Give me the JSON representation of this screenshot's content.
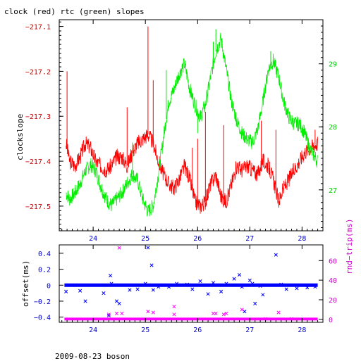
{
  "figure": {
    "title": "clock (red) rtc (green) slopes",
    "footer": "2009-08-23 boson"
  },
  "chart_data": [
    {
      "type": "line",
      "title": "clock (red) rtc (green) slopes",
      "xlabel": "",
      "ylabel": "clockslope",
      "xlim": [
        23.35,
        28.4
      ],
      "ylim": [
        -217.555,
        -217.085
      ],
      "y2lim": [
        26.35,
        29.7
      ],
      "xticks": [
        24,
        25,
        26,
        27,
        28
      ],
      "yticks": [
        -217.1,
        -217.2,
        -217.3,
        -217.4,
        -217.5
      ],
      "yticks_labels": [
        "−217.1",
        "−217.2",
        "−217.3",
        "−217.4",
        "−217.5"
      ],
      "y2ticks": [
        27,
        28,
        29
      ],
      "grid": false,
      "series": [
        {
          "color": "#ff0000",
          "axis": "left",
          "points": [
            [
              23.48,
              -217.36
            ],
            [
              23.55,
              -217.4
            ],
            [
              23.65,
              -217.41
            ],
            [
              23.75,
              -217.39
            ],
            [
              23.85,
              -217.36
            ],
            [
              23.95,
              -217.37
            ],
            [
              24.05,
              -217.4
            ],
            [
              24.15,
              -217.41
            ],
            [
              24.25,
              -217.42
            ],
            [
              24.35,
              -217.41
            ],
            [
              24.45,
              -217.39
            ],
            [
              24.55,
              -217.39
            ],
            [
              24.65,
              -217.41
            ],
            [
              24.75,
              -217.38
            ],
            [
              24.85,
              -217.36
            ],
            [
              24.95,
              -217.35
            ],
            [
              25.05,
              -217.34
            ],
            [
              25.15,
              -217.36
            ],
            [
              25.25,
              -217.4
            ],
            [
              25.35,
              -217.43
            ],
            [
              25.45,
              -217.45
            ],
            [
              25.55,
              -217.46
            ],
            [
              25.65,
              -217.44
            ],
            [
              25.75,
              -217.41
            ],
            [
              25.85,
              -217.44
            ],
            [
              25.95,
              -217.49
            ],
            [
              26.05,
              -217.5
            ],
            [
              26.15,
              -217.49
            ],
            [
              26.25,
              -217.45
            ],
            [
              26.35,
              -217.43
            ],
            [
              26.45,
              -217.48
            ],
            [
              26.55,
              -217.49
            ],
            [
              26.65,
              -217.45
            ],
            [
              26.75,
              -217.41
            ],
            [
              26.85,
              -217.42
            ],
            [
              26.95,
              -217.41
            ],
            [
              27.05,
              -217.42
            ],
            [
              27.15,
              -217.43
            ],
            [
              27.25,
              -217.4
            ],
            [
              27.35,
              -217.41
            ],
            [
              27.45,
              -217.44
            ],
            [
              27.55,
              -217.49
            ],
            [
              27.65,
              -217.46
            ],
            [
              27.75,
              -217.44
            ],
            [
              27.85,
              -217.42
            ],
            [
              27.95,
              -217.4
            ],
            [
              28.05,
              -217.38
            ],
            [
              28.15,
              -217.37
            ],
            [
              28.3,
              -217.36
            ]
          ],
          "spikes": [
            [
              23.5,
              -217.2
            ],
            [
              24.65,
              -217.28
            ],
            [
              25.05,
              -217.1
            ],
            [
              25.15,
              -217.22
            ],
            [
              25.9,
              -217.37
            ],
            [
              26.0,
              -217.35
            ],
            [
              26.15,
              -217.29
            ],
            [
              26.5,
              -217.32
            ],
            [
              27.22,
              -217.31
            ],
            [
              27.5,
              -217.33
            ],
            [
              28.25,
              -217.33
            ]
          ]
        },
        {
          "color": "#00ee00",
          "axis": "right",
          "points": [
            [
              23.48,
              26.95
            ],
            [
              23.55,
              26.85
            ],
            [
              23.65,
              26.95
            ],
            [
              23.75,
              27.1
            ],
            [
              23.85,
              27.3
            ],
            [
              23.95,
              27.4
            ],
            [
              24.05,
              27.3
            ],
            [
              24.15,
              27.05
            ],
            [
              24.25,
              26.85
            ],
            [
              24.35,
              26.75
            ],
            [
              24.45,
              26.85
            ],
            [
              24.55,
              26.95
            ],
            [
              24.65,
              27.1
            ],
            [
              24.75,
              27.25
            ],
            [
              24.85,
              27.15
            ],
            [
              24.95,
              26.85
            ],
            [
              25.05,
              26.65
            ],
            [
              25.15,
              26.75
            ],
            [
              25.25,
              27.25
            ],
            [
              25.35,
              27.85
            ],
            [
              25.45,
              28.4
            ],
            [
              25.55,
              28.6
            ],
            [
              25.65,
              28.85
            ],
            [
              25.75,
              29.0
            ],
            [
              25.85,
              28.6
            ],
            [
              25.95,
              28.35
            ],
            [
              26.05,
              28.15
            ],
            [
              26.15,
              28.35
            ],
            [
              26.25,
              28.8
            ],
            [
              26.35,
              29.2
            ],
            [
              26.45,
              29.4
            ],
            [
              26.55,
              28.9
            ],
            [
              26.65,
              28.4
            ],
            [
              26.75,
              28.1
            ],
            [
              26.85,
              27.9
            ],
            [
              26.95,
              27.8
            ],
            [
              27.05,
              27.75
            ],
            [
              27.15,
              27.95
            ],
            [
              27.25,
              28.4
            ],
            [
              27.35,
              28.9
            ],
            [
              27.45,
              29.05
            ],
            [
              27.55,
              28.8
            ],
            [
              27.65,
              28.4
            ],
            [
              27.75,
              28.15
            ],
            [
              27.85,
              28.05
            ],
            [
              27.95,
              28.05
            ],
            [
              28.05,
              27.9
            ],
            [
              28.15,
              27.65
            ],
            [
              28.3,
              27.45
            ]
          ],
          "spikes": [
            [
              24.75,
              27.75
            ],
            [
              25.4,
              28.9
            ],
            [
              26.3,
              29.35
            ],
            [
              26.35,
              29.55
            ],
            [
              27.4,
              29.2
            ],
            [
              26.0,
              27.9
            ]
          ]
        }
      ]
    },
    {
      "type": "scatter",
      "xlabel": "",
      "ylabel": "offset(ms)",
      "y2label": "rnd−trip(ms)",
      "xlim": [
        23.35,
        28.4
      ],
      "ylim": [
        -0.465,
        0.505
      ],
      "y2lim": [
        -3,
        76
      ],
      "xticks": [
        24,
        25,
        26,
        27,
        28
      ],
      "yticks": [
        0.4,
        0.2,
        0,
        -0.2,
        -0.4
      ],
      "y2ticks": [
        0,
        20,
        40,
        60
      ],
      "grid": false,
      "series": [
        {
          "color": "#0000ff",
          "marker": "x",
          "axis": "left",
          "baseline": {
            "y": 0.0,
            "x_from": 23.45,
            "x_to": 28.3
          },
          "points": [
            [
              23.48,
              -0.08
            ],
            [
              23.65,
              0.0
            ],
            [
              23.75,
              -0.07
            ],
            [
              23.85,
              -0.2
            ],
            [
              24.2,
              -0.1
            ],
            [
              24.3,
              -0.38
            ],
            [
              24.33,
              0.12
            ],
            [
              24.35,
              0.02
            ],
            [
              24.45,
              -0.2
            ],
            [
              24.5,
              -0.23
            ],
            [
              24.7,
              -0.06
            ],
            [
              24.85,
              -0.05
            ],
            [
              25.0,
              0.02
            ],
            [
              25.05,
              0.47
            ],
            [
              25.12,
              0.25
            ],
            [
              25.15,
              -0.06
            ],
            [
              25.25,
              -0.02
            ],
            [
              25.35,
              0.0
            ],
            [
              25.45,
              -0.02
            ],
            [
              25.6,
              0.02
            ],
            [
              25.8,
              0.01
            ],
            [
              25.9,
              -0.05
            ],
            [
              26.05,
              0.05
            ],
            [
              26.2,
              -0.11
            ],
            [
              26.3,
              0.03
            ],
            [
              26.45,
              -0.08
            ],
            [
              26.55,
              0.02
            ],
            [
              26.7,
              0.08
            ],
            [
              26.8,
              0.13
            ],
            [
              26.85,
              -0.02
            ],
            [
              26.9,
              -0.33
            ],
            [
              27.0,
              0.06
            ],
            [
              27.05,
              0.02
            ],
            [
              27.1,
              -0.23
            ],
            [
              27.2,
              -0.01
            ],
            [
              27.25,
              -0.12
            ],
            [
              27.5,
              0.38
            ],
            [
              27.6,
              0.01
            ],
            [
              27.7,
              -0.05
            ],
            [
              27.9,
              -0.04
            ],
            [
              28.1,
              -0.03
            ],
            [
              28.25,
              -0.02
            ]
          ]
        },
        {
          "color": "#ff00ff",
          "marker": "x",
          "axis": "right",
          "baseline": {
            "y": 0.3,
            "x_from": 23.45,
            "x_to": 28.3
          },
          "points": [
            [
              24.3,
              5
            ],
            [
              24.45,
              6
            ],
            [
              24.55,
              6
            ],
            [
              24.5,
              73
            ],
            [
              25.05,
              8
            ],
            [
              25.15,
              7
            ],
            [
              25.55,
              13
            ],
            [
              25.55,
              5
            ],
            [
              26.3,
              6
            ],
            [
              26.35,
              6
            ],
            [
              26.5,
              5
            ],
            [
              26.55,
              6
            ],
            [
              26.85,
              10
            ],
            [
              27.55,
              7
            ],
            [
              27.3,
              0.5
            ],
            [
              27.8,
              0.5
            ]
          ]
        }
      ]
    }
  ]
}
